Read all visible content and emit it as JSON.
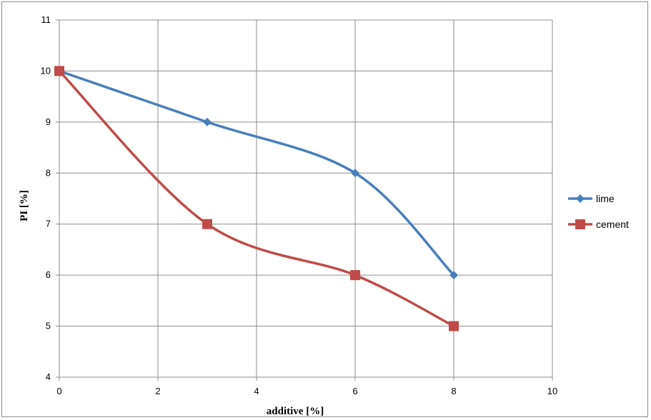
{
  "chart_data": {
    "type": "line",
    "smooth": true,
    "xlabel": "additive [%]",
    "ylabel": "PI [%]",
    "xlim": [
      0,
      10
    ],
    "ylim": [
      4,
      11
    ],
    "x_ticks": [
      "0",
      "2",
      "4",
      "6",
      "8",
      "10"
    ],
    "y_ticks": [
      "4",
      "5",
      "6",
      "7",
      "8",
      "9",
      "10",
      "11"
    ],
    "grid": true,
    "legend_position": "right",
    "series": [
      {
        "name": "lime",
        "color": "#4a7ebb",
        "marker": "diamond",
        "x": [
          0,
          3,
          6,
          8
        ],
        "y": [
          10,
          9,
          8,
          6
        ]
      },
      {
        "name": "cement",
        "color": "#be4b48",
        "marker": "square",
        "x": [
          0,
          3,
          6,
          8
        ],
        "y": [
          10,
          7,
          6,
          5
        ]
      }
    ]
  }
}
